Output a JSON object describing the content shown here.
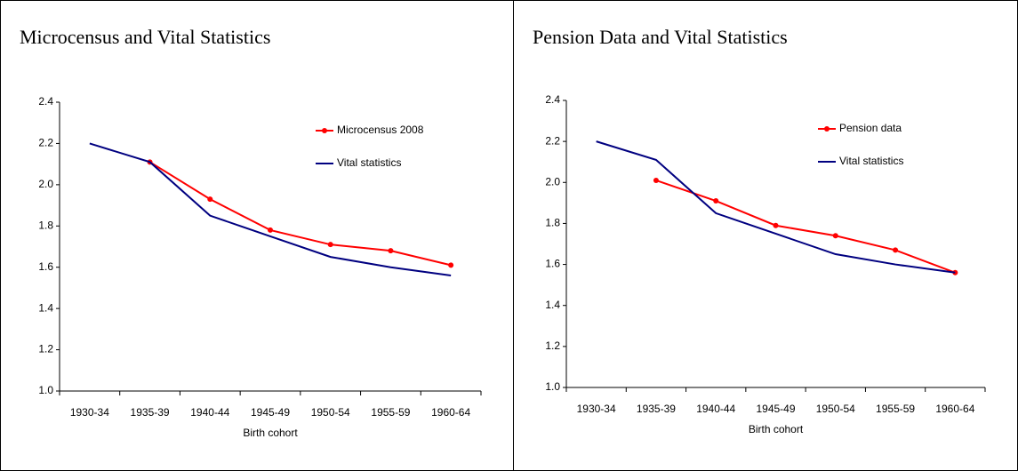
{
  "chart_data": [
    {
      "type": "line",
      "title": "Microcensus and Vital Statistics",
      "x_label": "Birth cohort",
      "categories": [
        "1930-34",
        "1935-39",
        "1940-44",
        "1945-49",
        "1950-54",
        "1955-59",
        "1960-64"
      ],
      "series": [
        {
          "name": "Microcensus 2008",
          "color": "#ff0000",
          "marker": true,
          "values": [
            null,
            2.11,
            1.93,
            1.78,
            1.71,
            1.68,
            1.61
          ]
        },
        {
          "name": "Vital statistics",
          "color": "#000080",
          "marker": false,
          "values": [
            2.2,
            2.11,
            1.85,
            1.75,
            1.65,
            1.6,
            1.56
          ]
        }
      ],
      "ylim": [
        1,
        2.4
      ],
      "yticks": [
        {
          "value": 1,
          "label": "1.0"
        },
        1.2,
        1.4,
        1.6,
        1.8,
        {
          "value": 2,
          "label": "2.0"
        },
        2.2,
        2.4
      ],
      "grid": false,
      "legend_position": "upper-right"
    },
    {
      "type": "line",
      "title": "Pension Data and Vital Statistics",
      "x_label": "Birth cohort",
      "categories": [
        "1930-34",
        "1935-39",
        "1940-44",
        "1945-49",
        "1950-54",
        "1955-59",
        "1960-64"
      ],
      "series": [
        {
          "name": "Pension data",
          "color": "#ff0000",
          "marker": true,
          "values": [
            null,
            2.01,
            1.91,
            1.79,
            1.74,
            1.67,
            1.56
          ]
        },
        {
          "name": "Vital statistics",
          "color": "#000080",
          "marker": false,
          "values": [
            2.2,
            2.11,
            1.85,
            1.75,
            1.65,
            1.6,
            1.56
          ]
        }
      ],
      "ylim": [
        1,
        2.4
      ],
      "yticks": [
        {
          "value": 1,
          "label": "1.0"
        },
        1.2,
        1.4,
        1.6,
        1.8,
        {
          "value": 2,
          "label": "2.0"
        },
        2.2,
        2.4
      ],
      "grid": false,
      "legend_position": "upper-right"
    }
  ]
}
